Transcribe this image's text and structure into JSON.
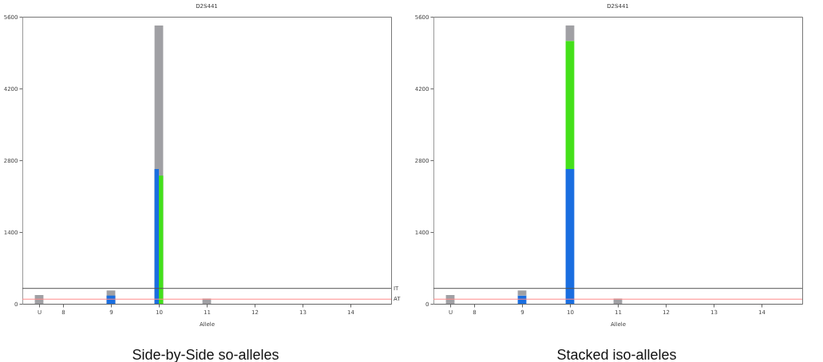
{
  "chart_data": [
    {
      "type": "bar",
      "title": "D2S441",
      "xlabel": "Allele",
      "x": [
        7.5,
        9,
        10,
        11
      ],
      "series": [
        {
          "color": "#a0a0a4",
          "values": [
            170,
            260,
            5430,
            100
          ]
        },
        {
          "color": "#1a6ee0",
          "values": [
            null,
            160,
            2630,
            null
          ]
        },
        {
          "color": "#44e01a",
          "values": [
            null,
            null,
            2500,
            null
          ]
        }
      ],
      "xlim": [
        7.15,
        14.85
      ],
      "xticks": [
        {
          "value": 7.5,
          "label": "U"
        },
        8,
        9,
        10,
        11,
        12,
        13,
        14
      ],
      "ylim": [
        0,
        5600
      ],
      "yticks": [
        0,
        1400,
        2800,
        4200,
        5600
      ],
      "ref_lines": [
        {
          "axis": "y",
          "value": 300,
          "label": "IT",
          "color": "#555555"
        },
        {
          "axis": "y",
          "value": 90,
          "label": "AT",
          "color": "#ff8a8a"
        }
      ],
      "annotations": [
        "Side-by-Side so-alleles"
      ]
    },
    {
      "type": "bar",
      "title": "D2S441",
      "xlabel": "Allele",
      "stacked": true,
      "x": [
        7.5,
        9,
        10,
        11
      ],
      "series": [
        {
          "color": "#1a6ee0",
          "values": [
            null,
            160,
            2630,
            null
          ]
        },
        {
          "color": "#44e01a",
          "values": [
            null,
            null,
            2500,
            null
          ]
        },
        {
          "color": "#a0a0a4",
          "values": [
            170,
            100,
            300,
            100
          ]
        }
      ],
      "xlim": [
        7.15,
        14.85
      ],
      "xticks": [
        {
          "value": 7.5,
          "label": "U"
        },
        8,
        9,
        10,
        11,
        12,
        13,
        14
      ],
      "ylim": [
        0,
        5600
      ],
      "yticks": [
        0,
        1400,
        2800,
        4200,
        5600
      ],
      "ref_lines": [
        {
          "axis": "y",
          "value": 300,
          "color": "#555555"
        },
        {
          "axis": "y",
          "value": 90,
          "color": "#ff8a8a"
        }
      ],
      "annotations": [
        "Stacked iso-alleles"
      ]
    }
  ]
}
